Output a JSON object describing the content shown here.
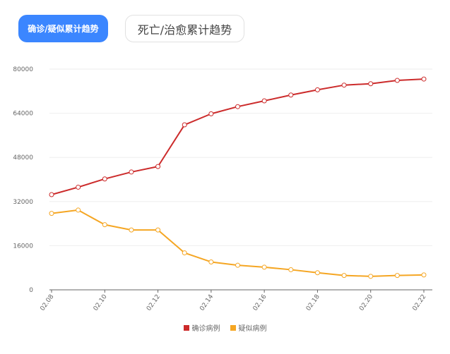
{
  "tabs": {
    "active_label": "确诊/疑似累计趋势",
    "inactive_label": "死亡/治愈累计趋势"
  },
  "colors": {
    "confirmed": "#cc2b2b",
    "suspected": "#f5a623",
    "active_tab": "#3b86ff",
    "grid": "#eeeeee",
    "axis": "#666666",
    "tick_text": "#666666"
  },
  "chart_data": {
    "type": "line",
    "x": [
      "02.08",
      "02.09",
      "02.10",
      "02.11",
      "02.12",
      "02.13",
      "02.14",
      "02.15",
      "02.16",
      "02.17",
      "02.18",
      "02.19",
      "02.20",
      "02.21",
      "02.22"
    ],
    "x_tick_labels": [
      "02.08",
      "02.10",
      "02.12",
      "02.14",
      "02.16",
      "02.18",
      "02.20",
      "02.22"
    ],
    "y_tick_labels": [
      "0",
      "16000",
      "32000",
      "48000",
      "64000",
      "80000"
    ],
    "ylim": [
      0,
      80000
    ],
    "grid": true,
    "legend_position": "bottom-center",
    "series": [
      {
        "name": "确诊病例",
        "color_key": "confirmed",
        "values": [
          34500,
          37200,
          40200,
          42700,
          44700,
          59800,
          63800,
          66400,
          68500,
          70600,
          72500,
          74200,
          74700,
          75900,
          76400
        ]
      },
      {
        "name": "疑似病例",
        "color_key": "suspected",
        "values": [
          27700,
          28900,
          23600,
          21700,
          21700,
          13400,
          10100,
          8900,
          8200,
          7300,
          6200,
          5200,
          4900,
          5200,
          5400
        ]
      }
    ]
  }
}
